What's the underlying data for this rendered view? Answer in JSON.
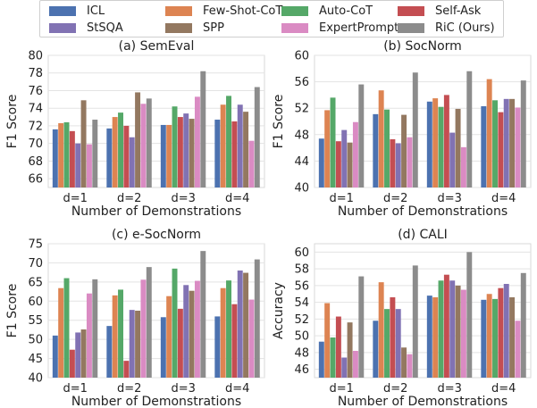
{
  "legend": [
    {
      "name": "ICL",
      "color": "#4c72b0"
    },
    {
      "name": "Few-Shot-CoT",
      "color": "#dd8452"
    },
    {
      "name": "Auto-CoT",
      "color": "#55a868"
    },
    {
      "name": "Self-Ask",
      "color": "#c44e52"
    },
    {
      "name": "StSQA",
      "color": "#8172b3"
    },
    {
      "name": "SPP",
      "color": "#937860"
    },
    {
      "name": "ExpertPrompt",
      "color": "#da8bc3"
    },
    {
      "name": "RiC (Ours)",
      "color": "#8c8c8c"
    }
  ],
  "chart_data": [
    {
      "type": "bar",
      "title": "(a) SemEval",
      "xlabel": "Number of Demonstrations",
      "ylabel": "F1 Score",
      "ylim": [
        65,
        80
      ],
      "yticks": [
        66,
        68,
        70,
        72,
        74,
        76,
        78,
        80
      ],
      "categories": [
        "d=1",
        "d=2",
        "d=3",
        "d=4"
      ],
      "series": [
        {
          "name": "ICL",
          "values": [
            71.6,
            71.7,
            72.1,
            72.7
          ]
        },
        {
          "name": "Few-Shot-CoT",
          "values": [
            72.3,
            73.0,
            72.1,
            74.4
          ]
        },
        {
          "name": "Auto-CoT",
          "values": [
            72.4,
            73.5,
            74.2,
            75.4
          ]
        },
        {
          "name": "Self-Ask",
          "values": [
            71.4,
            72.0,
            73.0,
            72.5
          ]
        },
        {
          "name": "StSQA",
          "values": [
            70.0,
            70.7,
            73.4,
            74.4
          ]
        },
        {
          "name": "SPP",
          "values": [
            74.9,
            75.8,
            72.8,
            73.6
          ]
        },
        {
          "name": "ExpertPrompt",
          "values": [
            69.9,
            74.5,
            75.3,
            70.3
          ]
        },
        {
          "name": "RiC (Ours)",
          "values": [
            72.7,
            75.1,
            78.2,
            76.4
          ]
        }
      ]
    },
    {
      "type": "bar",
      "title": "(b) SocNorm",
      "xlabel": "Number of Demonstrations",
      "ylabel": "F1 Score",
      "ylim": [
        40,
        60
      ],
      "yticks": [
        40,
        44,
        48,
        52,
        56,
        60
      ],
      "categories": [
        "d=1",
        "d=2",
        "d=3",
        "d=4"
      ],
      "series": [
        {
          "name": "ICL",
          "values": [
            47.4,
            51.1,
            53.0,
            52.3
          ]
        },
        {
          "name": "Few-Shot-CoT",
          "values": [
            51.7,
            54.7,
            53.5,
            56.4
          ]
        },
        {
          "name": "Auto-CoT",
          "values": [
            53.6,
            51.8,
            52.2,
            53.2
          ]
        },
        {
          "name": "Self-Ask",
          "values": [
            47.0,
            47.3,
            54.0,
            51.4
          ]
        },
        {
          "name": "StSQA",
          "values": [
            48.7,
            46.7,
            48.3,
            53.4
          ]
        },
        {
          "name": "SPP",
          "values": [
            46.8,
            51.0,
            51.9,
            53.4
          ]
        },
        {
          "name": "ExpertPrompt",
          "values": [
            49.9,
            47.6,
            46.1,
            52.1
          ]
        },
        {
          "name": "RiC (Ours)",
          "values": [
            55.6,
            57.4,
            57.6,
            56.2
          ]
        }
      ]
    },
    {
      "type": "bar",
      "title": "(c) e-SocNorm",
      "xlabel": "Number of Demonstrations",
      "ylabel": "F1 Score",
      "ylim": [
        40,
        75
      ],
      "yticks": [
        40,
        45,
        50,
        55,
        60,
        65,
        70,
        75
      ],
      "categories": [
        "d=1",
        "d=2",
        "d=3",
        "d=4"
      ],
      "series": [
        {
          "name": "ICL",
          "values": [
            51.0,
            53.5,
            55.8,
            56.0
          ]
        },
        {
          "name": "Few-Shot-CoT",
          "values": [
            63.4,
            61.5,
            61.3,
            63.4
          ]
        },
        {
          "name": "Auto-CoT",
          "values": [
            66.0,
            63.0,
            68.5,
            65.4
          ]
        },
        {
          "name": "Self-Ask",
          "values": [
            47.3,
            44.4,
            58.0,
            59.2
          ]
        },
        {
          "name": "StSQA",
          "values": [
            51.8,
            57.7,
            64.2,
            68.0
          ]
        },
        {
          "name": "SPP",
          "values": [
            52.6,
            57.5,
            62.7,
            67.4
          ]
        },
        {
          "name": "ExpertPrompt",
          "values": [
            62.0,
            65.6,
            65.3,
            60.4
          ]
        },
        {
          "name": "RiC (Ours)",
          "values": [
            65.7,
            68.9,
            73.1,
            70.9
          ]
        }
      ]
    },
    {
      "type": "bar",
      "title": "(d) CALI",
      "xlabel": "Number of Demonstrations",
      "ylabel": "Accuracy",
      "ylim": [
        45,
        61
      ],
      "yticks": [
        46,
        48,
        50,
        52,
        54,
        56,
        58,
        60
      ],
      "categories": [
        "d=1",
        "d=2",
        "d=3",
        "d=4"
      ],
      "series": [
        {
          "name": "ICL",
          "values": [
            49.3,
            51.8,
            54.8,
            54.3
          ]
        },
        {
          "name": "Few-Shot-CoT",
          "values": [
            53.9,
            56.4,
            54.6,
            55.0
          ]
        },
        {
          "name": "Auto-CoT",
          "values": [
            49.8,
            53.2,
            56.6,
            54.4
          ]
        },
        {
          "name": "Self-Ask",
          "values": [
            52.3,
            54.6,
            57.3,
            55.7
          ]
        },
        {
          "name": "StSQA",
          "values": [
            47.4,
            53.2,
            56.6,
            56.2
          ]
        },
        {
          "name": "SPP",
          "values": [
            51.6,
            48.6,
            56.0,
            54.6
          ]
        },
        {
          "name": "ExpertPrompt",
          "values": [
            48.2,
            47.8,
            55.5,
            51.8
          ]
        },
        {
          "name": "RiC (Ours)",
          "values": [
            57.1,
            58.4,
            60.0,
            57.5
          ]
        }
      ]
    }
  ]
}
